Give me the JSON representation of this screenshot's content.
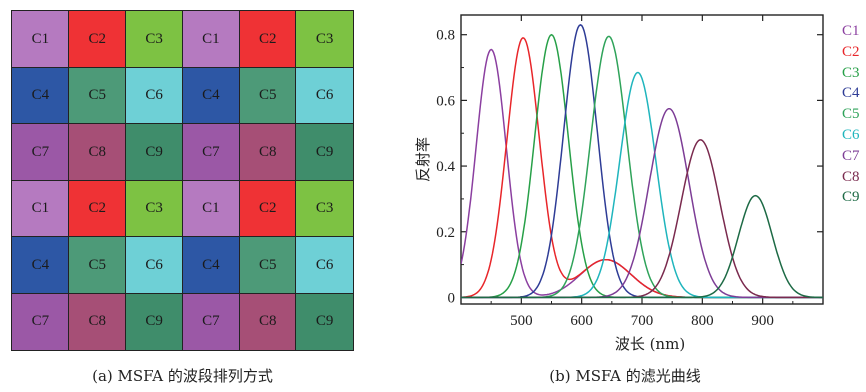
{
  "msfa": {
    "caption": "(a) MSFA 的波段排列方式",
    "cells": [
      [
        "C1",
        "C2",
        "C3",
        "C1",
        "C2",
        "C3"
      ],
      [
        "C4",
        "C5",
        "C6",
        "C4",
        "C5",
        "C6"
      ],
      [
        "C7",
        "C8",
        "C9",
        "C7",
        "C8",
        "C9"
      ],
      [
        "C1",
        "C2",
        "C3",
        "C1",
        "C2",
        "C3"
      ],
      [
        "C4",
        "C5",
        "C6",
        "C4",
        "C5",
        "C6"
      ],
      [
        "C7",
        "C8",
        "C9",
        "C7",
        "C8",
        "C9"
      ]
    ],
    "cell_colors": {
      "C1": "#b57ac0",
      "C2": "#ef3235",
      "C3": "#7dc243",
      "C4": "#2d57a5",
      "C5": "#4d9a78",
      "C6": "#6ed0d6",
      "C7": "#9b58a6",
      "C8": "#a64f76",
      "C9": "#3f8d6b"
    }
  },
  "chart_data": {
    "type": "line",
    "caption": "(b) MSFA 的滤光曲线",
    "xlabel": "波长 (nm)",
    "ylabel": "反射率",
    "xlim": [
      400,
      1000
    ],
    "ylim": [
      -0.02,
      0.86
    ],
    "xticks": [
      500,
      600,
      700,
      800,
      900
    ],
    "yticks": [
      0,
      0.2,
      0.4,
      0.6,
      0.8
    ],
    "ytick_labels": [
      "0",
      "0.2",
      "0.4",
      "0.6",
      "0.8"
    ],
    "grid": false,
    "legend_position": "right",
    "series": [
      {
        "name": "C1",
        "color": "#8b3fa0",
        "peak": 450,
        "amplitude": 0.755,
        "width": 25
      },
      {
        "name": "C2",
        "color": "#e8262a",
        "peak": 503,
        "amplitude": 0.79,
        "width": 27
      },
      {
        "name": "C3",
        "color": "#27a048",
        "peak": 550,
        "amplitude": 0.8,
        "width": 28
      },
      {
        "name": "C4",
        "color": "#2e3c96",
        "peak": 598,
        "amplitude": 0.83,
        "width": 28
      },
      {
        "name": "C5",
        "color": "#2fa35a",
        "peak": 645,
        "amplitude": 0.795,
        "width": 30
      },
      {
        "name": "C6",
        "color": "#1fb5bd",
        "peak": 693,
        "amplitude": 0.685,
        "width": 30
      },
      {
        "name": "C7",
        "color": "#7d3d96",
        "peak": 745,
        "amplitude": 0.575,
        "width": 33
      },
      {
        "name": "C8",
        "color": "#7a2a4e",
        "peak": 797,
        "amplitude": 0.48,
        "width": 32
      },
      {
        "name": "C9",
        "color": "#1d6a45",
        "peak": 888,
        "amplitude": 0.31,
        "width": 28
      }
    ]
  }
}
